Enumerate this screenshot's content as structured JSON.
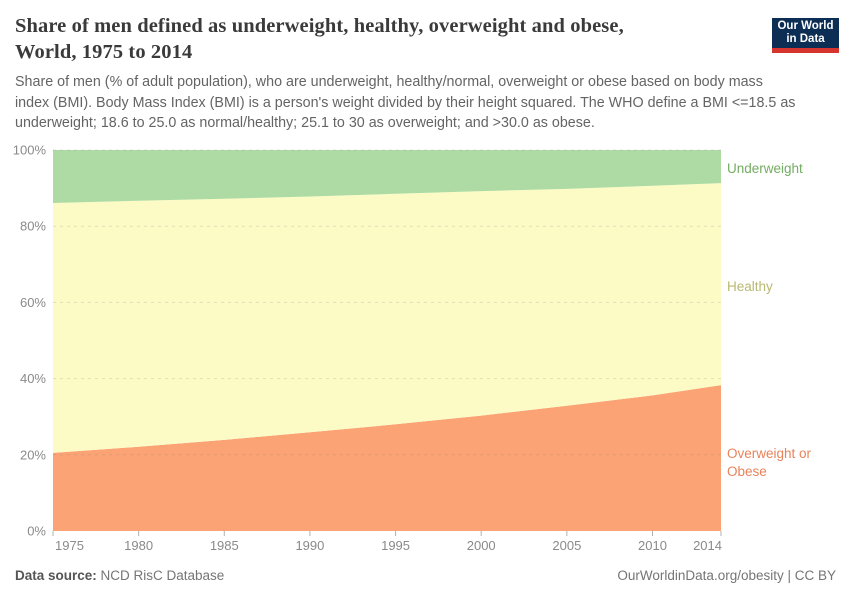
{
  "header": {
    "title": "Share of men defined as underweight, healthy, overweight and obese, World, 1975 to 2014",
    "title_lines": [
      "Share of men defined as underweight, healthy, overweight and obese,",
      "World, 1975 to 2014"
    ],
    "subtitle_lines": [
      "Share of men (% of adult population), who are underweight, healthy/normal, overweight or obese based on body mass",
      "index (BMI). Body Mass Index (BMI) is a person's weight divided by their height squared. The WHO define a BMI <=18.5 as",
      "underweight; 18.6 to 25.0 as normal/healthy; 25.1 to 30 as overweight; and >30.0 as obese."
    ],
    "logo": {
      "line1": "Our World",
      "line2": "in Data",
      "bg_color": "#0d2e54",
      "bar_color": "#d5342f"
    }
  },
  "chart_data": {
    "type": "area",
    "stacked": true,
    "title": "Share of men defined as underweight, healthy, overweight and obese, World, 1975 to 2014",
    "xlabel": "",
    "ylabel": "",
    "xlim": [
      1975,
      2014
    ],
    "ylim": [
      0,
      100
    ],
    "grid": "dashed-horizontal",
    "legend_position": "right-margin-inline-labels",
    "x": [
      1975,
      1980,
      1985,
      1990,
      1995,
      2000,
      2005,
      2010,
      2014
    ],
    "x_ticks": [
      1975,
      1980,
      1985,
      1990,
      1995,
      2000,
      2005,
      2010,
      2014
    ],
    "y_ticks": [
      0,
      20,
      40,
      60,
      80,
      100
    ],
    "y_tick_suffix": "%",
    "series": [
      {
        "name": "Overweight or Obese",
        "color": "#fba374",
        "label_color": "#e8835a",
        "values": [
          20.5,
          22.1,
          23.9,
          25.9,
          28.0,
          30.3,
          32.9,
          35.6,
          38.3
        ]
      },
      {
        "name": "Healthy",
        "color": "#fcfbc6",
        "label_color": "#b8b873",
        "values": [
          65.6,
          64.6,
          63.3,
          61.9,
          60.5,
          58.9,
          56.9,
          55.0,
          53.0
        ]
      },
      {
        "name": "Underweight",
        "color": "#addba3",
        "label_color": "#75ad63",
        "values": [
          13.9,
          13.3,
          12.8,
          12.2,
          11.5,
          10.8,
          10.2,
          9.4,
          8.7
        ]
      }
    ],
    "axis_colors": {
      "tick_label": "#8a8a8a",
      "gridline": "#808080",
      "tick_mark": "#b0b0b0"
    }
  },
  "footer": {
    "source_label": "Data source:",
    "source_value": " NCD RisC Database",
    "credit": "OurWorldinData.org/obesity | CC BY"
  }
}
